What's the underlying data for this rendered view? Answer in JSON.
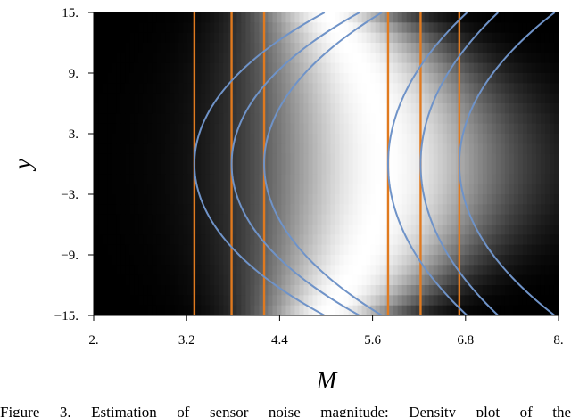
{
  "caption": "Figure 3.    Estimation of sensor noise magnitude: Density plot of the",
  "chart_data": {
    "type": "heatmap",
    "title": "",
    "xlabel": "M",
    "ylabel": "y",
    "xlim": [
      2.0,
      8.0
    ],
    "ylim": [
      -15.0,
      15.0
    ],
    "x_ticks": [
      2.0,
      3.2,
      4.4,
      5.6,
      6.8,
      8.0
    ],
    "x_tick_labels": [
      "2.",
      "3.2",
      "4.4",
      "5.6",
      "6.8",
      "8."
    ],
    "y_ticks": [
      15.0,
      9.0,
      3.0,
      -3.0,
      -9.0,
      -15.0
    ],
    "y_tick_labels": [
      "15.",
      "9.",
      "3.",
      "−3.",
      "−9.",
      "−15."
    ],
    "density": {
      "colormap": "grayscale (black = low, white = high)",
      "peak_M_at_y0": 5.75,
      "width_M_at_y0": 1.55,
      "peak_M_at_edges": 5.0,
      "width_M_at_edges": 0.9
    },
    "vertical_lines": {
      "color": "#e07a1f",
      "M": [
        3.3,
        3.78,
        4.2,
        5.8,
        6.22,
        6.72
      ]
    },
    "contours": {
      "color": "#6f93c8",
      "curves": [
        {
          "M_at_y0": 3.3,
          "M_at_y15": 4.98
        },
        {
          "M_at_y0": 3.78,
          "M_at_y15": 5.43
        },
        {
          "M_at_y0": 4.2,
          "M_at_y15": 5.72
        },
        {
          "M_at_y0": 5.8,
          "M_at_y15": 6.82
        },
        {
          "M_at_y0": 6.22,
          "M_at_y15": 7.22
        },
        {
          "M_at_y0": 6.72,
          "M_at_y15": 7.95
        }
      ]
    }
  }
}
